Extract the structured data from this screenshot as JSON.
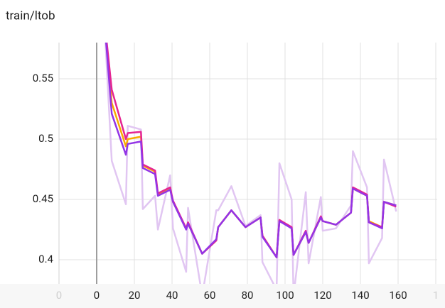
{
  "chart_data": {
    "type": "line",
    "title": "train/ltob",
    "x": [
      4,
      8,
      15.5,
      16.5,
      23.5,
      24.5,
      31,
      32.5,
      39,
      40.5,
      47.5,
      48.5,
      56,
      63.5,
      64.5,
      71.5,
      79,
      87,
      88,
      95.5,
      97,
      103.5,
      104.5,
      111,
      112.5,
      119,
      120,
      127,
      135,
      136,
      143.5,
      144.5,
      151.5,
      152.5,
      159
    ],
    "series": [
      {
        "color": "#e1c6f2",
        "values": [
          0.6,
          0.482,
          0.446,
          0.511,
          0.508,
          0.442,
          0.453,
          0.425,
          0.47,
          0.426,
          0.39,
          0.443,
          0.37,
          0.441,
          0.441,
          0.461,
          0.428,
          0.437,
          0.398,
          0.375,
          0.48,
          0.45,
          0.37,
          0.456,
          0.397,
          0.452,
          0.424,
          0.426,
          0.445,
          0.49,
          0.46,
          0.397,
          0.418,
          0.483,
          0.44
        ]
      },
      {
        "color": "#f9ab00",
        "values": [
          0.6,
          0.53,
          0.494,
          0.5,
          0.502,
          0.478,
          0.473,
          0.454,
          0.459,
          0.448,
          0.426,
          0.43,
          0.405,
          0.416,
          0.427,
          0.441,
          0.427,
          0.435,
          0.42,
          0.402,
          0.433,
          0.426,
          0.404,
          0.423,
          0.414,
          0.435,
          0.432,
          0.429,
          0.439,
          0.459,
          0.453,
          0.432,
          0.427,
          0.448,
          0.445
        ]
      },
      {
        "color": "#e52592",
        "values": [
          0.6,
          0.541,
          0.5,
          0.505,
          0.506,
          0.479,
          0.474,
          0.455,
          0.46,
          0.449,
          0.426,
          0.431,
          0.405,
          0.416,
          0.427,
          0.441,
          0.427,
          0.435,
          0.42,
          0.402,
          0.433,
          0.427,
          0.404,
          0.424,
          0.414,
          0.436,
          0.432,
          0.429,
          0.439,
          0.46,
          0.454,
          0.431,
          0.427,
          0.448,
          0.444
        ]
      },
      {
        "color": "#9334e6",
        "values": [
          0.6,
          0.521,
          0.487,
          0.496,
          0.498,
          0.476,
          0.471,
          0.453,
          0.458,
          0.448,
          0.425,
          0.43,
          0.405,
          0.417,
          0.427,
          0.441,
          0.427,
          0.435,
          0.419,
          0.402,
          0.432,
          0.426,
          0.404,
          0.423,
          0.414,
          0.435,
          0.432,
          0.429,
          0.439,
          0.459,
          0.453,
          0.431,
          0.426,
          0.448,
          0.445
        ]
      }
    ],
    "xlim": [
      -20,
      180
    ],
    "ylim": [
      0.38,
      0.58
    ],
    "xticks": [
      {
        "value": -20,
        "label": "0"
      },
      0,
      20,
      40,
      60,
      80,
      100,
      120,
      140,
      160,
      {
        "value": 180,
        "label": "1"
      }
    ],
    "yticks": [
      0.4,
      0.45,
      0.5,
      0.55
    ],
    "grid": true
  }
}
